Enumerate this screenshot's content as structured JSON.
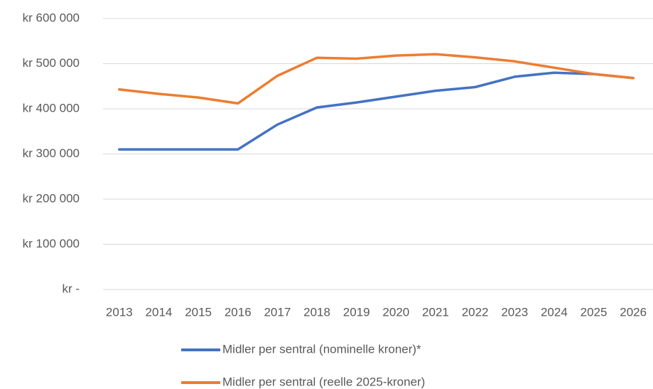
{
  "chart_data": {
    "type": "line",
    "categories": [
      "2013",
      "2014",
      "2015",
      "2016",
      "2017",
      "2018",
      "2019",
      "2020",
      "2021",
      "2022",
      "2023",
      "2024",
      "2025",
      "2026"
    ],
    "series": [
      {
        "name": "Midler per sentral (nominelle kroner)*",
        "color": "#4472c4",
        "values": [
          310000,
          310000,
          310000,
          310000,
          365000,
          403000,
          414000,
          427000,
          440000,
          448000,
          471000,
          480000,
          477000,
          468000
        ]
      },
      {
        "name": "Midler per sentral (reelle 2025-kroner)",
        "color": "#ed7d31",
        "values": [
          443000,
          433000,
          425000,
          412000,
          473000,
          513000,
          511000,
          518000,
          521000,
          514000,
          505000,
          491000,
          477000,
          468000
        ]
      }
    ],
    "ylim": [
      0,
      600000
    ],
    "yticks": [
      {
        "value": 0,
        "label": "kr -"
      },
      {
        "value": 100000,
        "label": "kr 100 000"
      },
      {
        "value": 200000,
        "label": "kr 200 000"
      },
      {
        "value": 300000,
        "label": "kr 300 000"
      },
      {
        "value": 400000,
        "label": "kr 400 000"
      },
      {
        "value": 500000,
        "label": "kr 500 000"
      },
      {
        "value": 600000,
        "label": "kr 600 000"
      }
    ],
    "grid": true,
    "legend": "bottom"
  }
}
